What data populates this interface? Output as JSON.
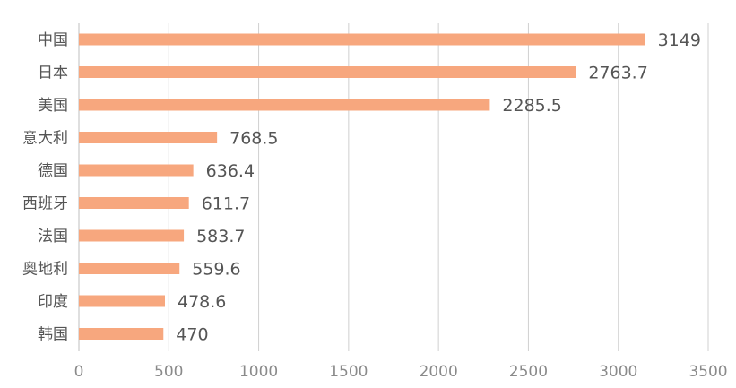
{
  "chart_data": {
    "type": "bar",
    "orientation": "horizontal",
    "categories": [
      "中国",
      "日本",
      "美国",
      "意大利",
      "德国",
      "西班牙",
      "法国",
      "奥地利",
      "印度",
      "韩国"
    ],
    "values": [
      3149,
      2763.7,
      2285.5,
      768.5,
      636.4,
      611.7,
      583.7,
      559.6,
      478.6,
      470
    ],
    "value_labels": [
      "3149",
      "2763.7",
      "2285.5",
      "768.5",
      "636.4",
      "611.7",
      "583.7",
      "559.6",
      "478.6",
      "470"
    ],
    "x_ticks": [
      "0",
      "500",
      "1000",
      "1500",
      "2000",
      "2500",
      "3000",
      "3500"
    ],
    "xlim": [
      0,
      3500
    ],
    "grid": "vertical",
    "legend": "none",
    "title": "",
    "xlabel": "",
    "ylabel": "",
    "colors": {
      "bar": "#f7a77e",
      "grid": "#d0d0d0",
      "axis": "#bfbfbf"
    }
  }
}
